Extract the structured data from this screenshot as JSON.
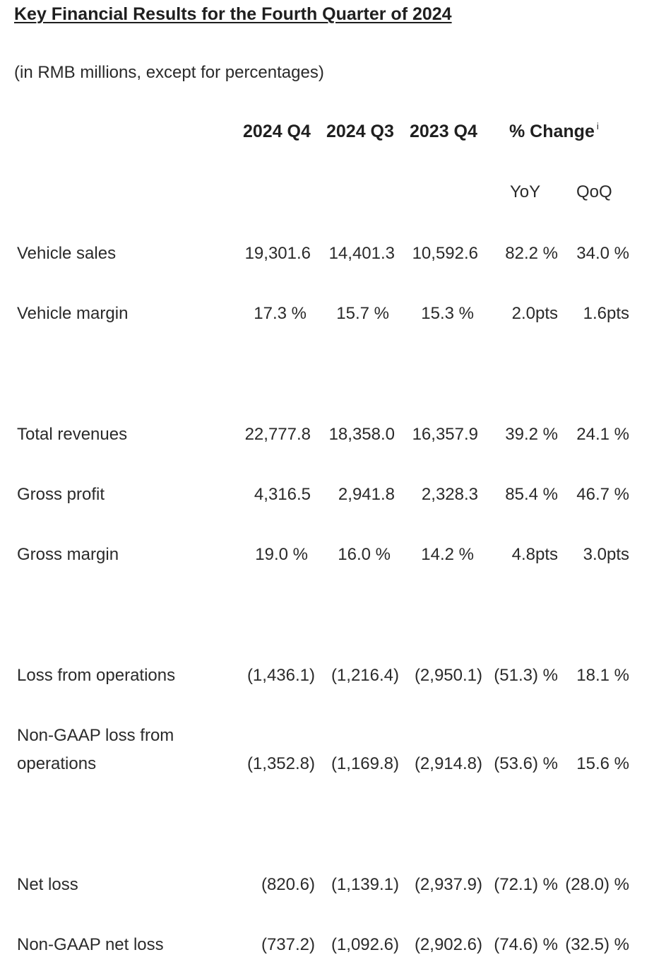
{
  "title": "Key Financial Results for the Fourth Quarter of 2024",
  "subtitle": "(in RMB millions, except for percentages)",
  "columns": {
    "q4_2024": "2024 Q4",
    "q3_2024": "2024 Q3",
    "q4_2023": "2023 Q4",
    "change": "% Change",
    "change_note": "i",
    "yoy": "YoY",
    "qoq": "QoQ"
  },
  "rows": [
    {
      "label": "Vehicle sales",
      "q4_2024": "19,301.6",
      "q3_2024": "14,401.3",
      "q4_2023": "10,592.6",
      "yoy": "82.2 %",
      "qoq": "34.0 %"
    },
    {
      "label": "Vehicle margin",
      "q4_2024": "17.3 %",
      "q3_2024": "15.7 %",
      "q4_2023": "15.3 %",
      "yoy": "2.0pts",
      "qoq": "1.6pts"
    },
    {
      "label": "Total revenues",
      "q4_2024": "22,777.8",
      "q3_2024": "18,358.0",
      "q4_2023": "16,357.9",
      "yoy": "39.2 %",
      "qoq": "24.1 %"
    },
    {
      "label": "Gross profit",
      "q4_2024": "4,316.5",
      "q3_2024": "2,941.8",
      "q4_2023": "2,328.3",
      "yoy": "85.4 %",
      "qoq": "46.7 %"
    },
    {
      "label": "Gross margin",
      "q4_2024": "19.0 %",
      "q3_2024": "16.0 %",
      "q4_2023": "14.2 %",
      "yoy": "4.8pts",
      "qoq": "3.0pts"
    },
    {
      "label": "Loss from operations",
      "q4_2024": "(1,436.1)",
      "q3_2024": "(1,216.4)",
      "q4_2023": "(2,950.1)",
      "yoy": "(51.3) %",
      "qoq": "18.1 %"
    },
    {
      "label_line1": "Non-GAAP loss from",
      "label_line2": "operations",
      "q4_2024": "(1,352.8)",
      "q3_2024": "(1,169.8)",
      "q4_2023": "(2,914.8)",
      "yoy": "(53.6) %",
      "qoq": "15.6 %"
    },
    {
      "label": "Net loss",
      "q4_2024": "(820.6)",
      "q3_2024": "(1,139.1)",
      "q4_2023": "(2,937.9)",
      "yoy": "(72.1) %",
      "qoq": "(28.0) %"
    },
    {
      "label": "Non-GAAP net loss",
      "q4_2024": "(737.2)",
      "q3_2024": "(1,092.6)",
      "q4_2023": "(2,902.6)",
      "yoy": "(74.6) %",
      "qoq": "(32.5) %"
    }
  ]
}
